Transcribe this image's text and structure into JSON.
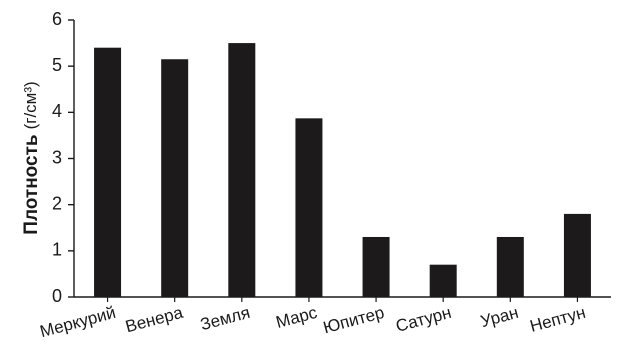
{
  "chart_data": {
    "type": "bar",
    "categories": [
      "Меркурий",
      "Венера",
      "Земля",
      "Марс",
      "Юпитер",
      "Сатурн",
      "Уран",
      "Нептун"
    ],
    "values": [
      5.4,
      5.15,
      5.5,
      3.87,
      1.3,
      0.7,
      1.3,
      1.8
    ],
    "ylabel_main": "Плотность",
    "ylabel_unit": "(г/см³)",
    "xlabel": "",
    "title": "",
    "ylim": [
      0,
      6
    ],
    "yticks": [
      0,
      1,
      2,
      3,
      4,
      5,
      6
    ],
    "grid": false,
    "colors": {
      "bar": "#1c1a1b",
      "axis": "#1a1a1a"
    }
  }
}
